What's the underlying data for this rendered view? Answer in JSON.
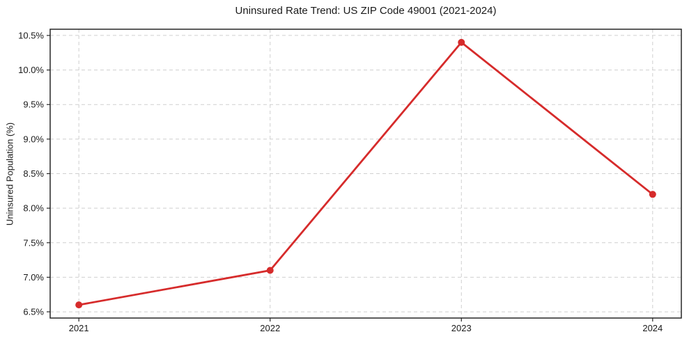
{
  "chart_data": {
    "type": "line",
    "title": "Uninsured Rate Trend: US ZIP Code 49001 (2021-2024)",
    "xlabel": "",
    "ylabel": "Uninsured Population (%)",
    "x": [
      2021,
      2022,
      2023,
      2024
    ],
    "xtick_labels": [
      "2021",
      "2022",
      "2023",
      "2024"
    ],
    "series": [
      {
        "values": [
          6.6,
          7.1,
          10.4,
          8.2
        ]
      }
    ],
    "yticks": [
      6.5,
      7.0,
      7.5,
      8.0,
      8.5,
      9.0,
      9.5,
      10.0,
      10.5
    ],
    "ytick_labels": [
      "6.5%",
      "7.0%",
      "7.5%",
      "8.0%",
      "8.5%",
      "9.0%",
      "9.5%",
      "10.0%",
      "10.5%"
    ],
    "ylim": [
      6.41,
      10.59
    ],
    "xlim": [
      2020.85,
      2024.15
    ],
    "grid": true,
    "grid_style": "dashed",
    "legend_position": "none",
    "marker": "circle",
    "line_color": "#d62b2b",
    "grid_color": "#cfcfcf",
    "axis_color": "#262626",
    "text_color": "#1a1a1a",
    "background_color": "#ffffff"
  }
}
